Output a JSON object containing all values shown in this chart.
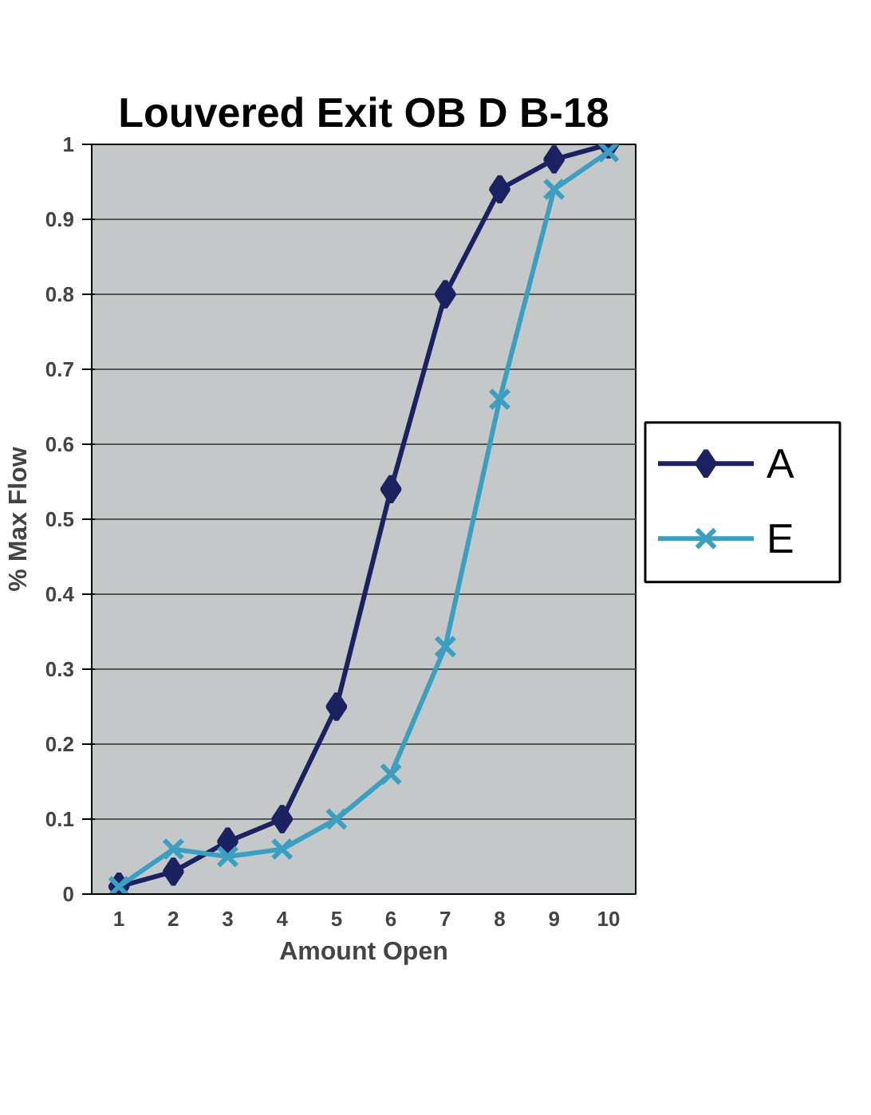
{
  "chart_data": {
    "type": "line",
    "title": "Louvered Exit OB D B-18",
    "xlabel": "Amount Open",
    "ylabel": "% Max Flow",
    "categories": [
      "1",
      "2",
      "3",
      "4",
      "5",
      "6",
      "7",
      "8",
      "9",
      "10"
    ],
    "series": [
      {
        "name": "A",
        "color": "#1b2161",
        "marker": "diamond",
        "values": [
          0.01,
          0.03,
          0.07,
          0.1,
          0.25,
          0.54,
          0.8,
          0.94,
          0.98,
          1.0
        ]
      },
      {
        "name": "E",
        "color": "#3a9fc0",
        "marker": "cross",
        "values": [
          0.01,
          0.06,
          0.05,
          0.06,
          0.1,
          0.16,
          0.33,
          0.66,
          0.94,
          0.99
        ]
      }
    ],
    "ylim": [
      0,
      1
    ],
    "yticks": [
      0,
      0.1,
      0.2,
      0.3,
      0.4,
      0.5,
      0.6,
      0.7,
      0.8,
      0.9,
      1
    ],
    "grid": "y",
    "legend": "right"
  }
}
